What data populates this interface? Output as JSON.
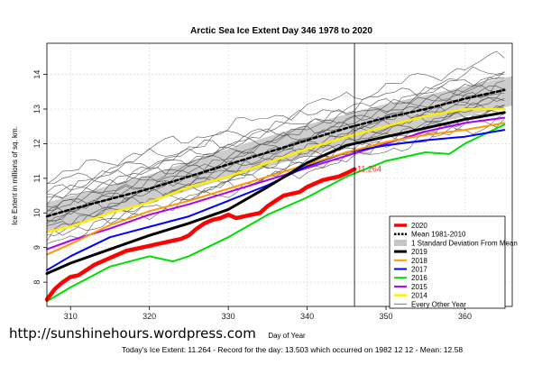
{
  "chart_data": {
    "type": "line",
    "title": "Arctic Sea Ice Extent Day 346 1978 to 2020",
    "xlabel": "Day of Year",
    "ylabel": "Ice Extent in millions of sq. km.",
    "xlim": [
      307,
      366
    ],
    "ylim": [
      7.3,
      14.9
    ],
    "xticks": [
      310,
      320,
      330,
      340,
      350,
      360
    ],
    "yticks": [
      8,
      9,
      10,
      11,
      12,
      13,
      14
    ],
    "grid": true,
    "legend_position": "bottom-right",
    "current_day": 346,
    "annotation": {
      "x": 346,
      "y": 11.264,
      "text": "11.264",
      "color": "#ff2a2a"
    },
    "std_band": {
      "x": [
        307,
        320,
        330,
        340,
        350,
        366
      ],
      "upper": [
        10.3,
        11.1,
        11.85,
        12.55,
        13.15,
        13.95
      ],
      "lower": [
        9.45,
        10.3,
        11.0,
        11.65,
        12.25,
        13.1
      ]
    },
    "series": [
      {
        "name": "2020",
        "color": "#ff0000",
        "width": 4.5,
        "dash": "",
        "x": [
          307,
          308,
          309,
          310,
          311,
          312,
          313,
          314,
          315,
          316,
          317,
          318,
          319,
          320,
          321,
          322,
          323,
          324,
          325,
          326,
          327,
          328,
          329,
          330,
          331,
          332,
          333,
          334,
          335,
          336,
          337,
          338,
          339,
          340,
          341,
          342,
          343,
          344,
          345,
          346
        ],
        "y": [
          7.5,
          7.8,
          8.0,
          8.15,
          8.2,
          8.35,
          8.5,
          8.6,
          8.7,
          8.8,
          8.9,
          8.95,
          9.0,
          9.05,
          9.1,
          9.15,
          9.2,
          9.25,
          9.35,
          9.55,
          9.7,
          9.8,
          9.85,
          9.95,
          9.85,
          9.9,
          9.95,
          10.0,
          10.2,
          10.35,
          10.5,
          10.55,
          10.6,
          10.75,
          10.85,
          10.95,
          11.0,
          11.05,
          11.15,
          11.264
        ]
      },
      {
        "name": "Mean 1981-2010",
        "color": "#000000",
        "width": 2.5,
        "dash": "4,3",
        "x": [
          307,
          310,
          315,
          320,
          325,
          330,
          335,
          340,
          345,
          350,
          355,
          360,
          365
        ],
        "y": [
          9.9,
          10.1,
          10.4,
          10.7,
          11.05,
          11.4,
          11.75,
          12.1,
          12.45,
          12.75,
          13.0,
          13.3,
          13.55
        ]
      },
      {
        "name": "1 Standard Deviation From Mean",
        "color": "#cccccc",
        "width": 8,
        "dash": "",
        "x": [],
        "y": []
      },
      {
        "name": "2019",
        "color": "#000000",
        "width": 3,
        "dash": "",
        "x": [
          307,
          310,
          315,
          320,
          325,
          330,
          335,
          340,
          345,
          350,
          355,
          360,
          365
        ],
        "y": [
          8.25,
          8.55,
          8.95,
          9.35,
          9.7,
          10.1,
          10.75,
          11.45,
          11.95,
          12.2,
          12.45,
          12.7,
          12.9
        ]
      },
      {
        "name": "2018",
        "color": "#ff9900",
        "width": 2,
        "dash": "",
        "x": [
          307,
          310,
          315,
          320,
          325,
          330,
          335,
          340,
          345,
          350,
          355,
          360,
          365
        ],
        "y": [
          8.8,
          9.1,
          9.65,
          10.05,
          10.35,
          10.7,
          11.05,
          11.4,
          11.75,
          12.05,
          12.25,
          12.4,
          12.6
        ]
      },
      {
        "name": "2017",
        "color": "#0000ff",
        "width": 2,
        "dash": "",
        "x": [
          307,
          310,
          315,
          320,
          325,
          330,
          335,
          340,
          345,
          350,
          355,
          360,
          365
        ],
        "y": [
          8.35,
          8.75,
          9.3,
          9.6,
          9.9,
          10.35,
          10.8,
          11.35,
          11.75,
          11.95,
          12.1,
          12.2,
          12.4
        ]
      },
      {
        "name": "2016",
        "color": "#00dd00",
        "width": 2,
        "dash": "",
        "x": [
          307,
          310,
          315,
          320,
          323,
          325,
          330,
          335,
          340,
          345,
          350,
          355,
          358,
          360,
          365
        ],
        "y": [
          7.45,
          7.85,
          8.45,
          8.75,
          8.6,
          8.75,
          9.3,
          9.95,
          10.45,
          11.05,
          11.5,
          11.75,
          11.7,
          12.0,
          12.55
        ]
      },
      {
        "name": "2015",
        "color": "#aa00ff",
        "width": 2,
        "dash": "",
        "x": [
          307,
          310,
          315,
          320,
          325,
          330,
          335,
          340,
          345,
          350,
          355,
          360,
          365
        ],
        "y": [
          8.95,
          9.2,
          9.55,
          9.95,
          10.25,
          10.6,
          10.95,
          11.3,
          11.65,
          12.0,
          12.35,
          12.6,
          12.75
        ]
      },
      {
        "name": "2014",
        "color": "#ffee00",
        "width": 2.5,
        "dash": "",
        "x": [
          307,
          310,
          315,
          320,
          325,
          330,
          335,
          340,
          345,
          350,
          355,
          360,
          365
        ],
        "y": [
          9.45,
          9.6,
          10.0,
          10.3,
          10.75,
          11.05,
          11.45,
          11.85,
          12.2,
          12.5,
          12.8,
          13.0,
          13.0
        ]
      },
      {
        "name": "Every Other Year",
        "color": "#555555",
        "width": 0.8,
        "dash": "",
        "x": [],
        "y": []
      }
    ],
    "background_years": {
      "color": "#555555",
      "lines": [
        {
          "y0": 10.65,
          "y1": 14.5
        },
        {
          "y0": 10.45,
          "y1": 14.2
        },
        {
          "y0": 10.3,
          "y1": 14.05
        },
        {
          "y0": 10.2,
          "y1": 13.95
        },
        {
          "y0": 10.1,
          "y1": 13.85
        },
        {
          "y0": 10.0,
          "y1": 13.75
        },
        {
          "y0": 9.9,
          "y1": 13.7
        },
        {
          "y0": 9.8,
          "y1": 13.6
        },
        {
          "y0": 9.7,
          "y1": 13.5
        },
        {
          "y0": 9.6,
          "y1": 13.45
        },
        {
          "y0": 9.55,
          "y1": 13.35
        },
        {
          "y0": 9.45,
          "y1": 13.25
        },
        {
          "y0": 9.35,
          "y1": 13.2
        },
        {
          "y0": 9.25,
          "y1": 13.1
        },
        {
          "y0": 9.15,
          "y1": 13.0
        },
        {
          "y0": 9.05,
          "y1": 12.9
        },
        {
          "y0": 8.95,
          "y1": 12.8
        },
        {
          "y0": 8.85,
          "y1": 12.7
        }
      ]
    }
  },
  "footer": {
    "watermark": "http://sunshinehours.wordpress.com",
    "stats": "Today's Ice Extent: 11.264  - Record for the day: 13.503 which occurred on 1982 12 12  - Mean: 12.58"
  }
}
